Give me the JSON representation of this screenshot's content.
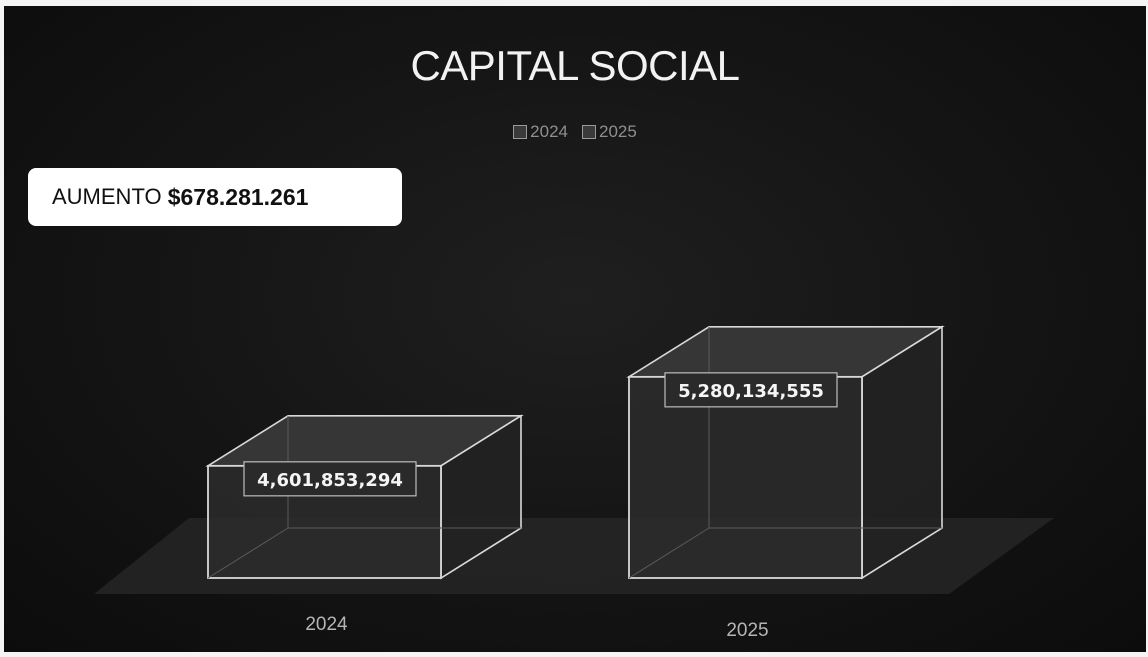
{
  "chart_data": {
    "type": "bar",
    "title": "CAPITAL SOCIAL",
    "categories": [
      "2024",
      "2025"
    ],
    "series": [
      {
        "name": "2024",
        "values": [
          4601853294,
          null
        ]
      },
      {
        "name": "2025",
        "values": [
          null,
          5280134555
        ]
      }
    ],
    "data_labels": [
      "4,601,853,294",
      "5,280,134,555"
    ],
    "legend": {
      "position": "top",
      "entries": [
        "2024",
        "2025"
      ]
    },
    "style": "3d",
    "grid": false
  },
  "annotation": {
    "prefix": "AUMENTO ",
    "amount": "$678.281.261"
  },
  "colors": {
    "background": "#141414",
    "bar_fill": "#2b2b2b",
    "bar_edge": "#d9d9d9",
    "text": "#f2f2f2",
    "callout_bg": "#ffffff"
  }
}
